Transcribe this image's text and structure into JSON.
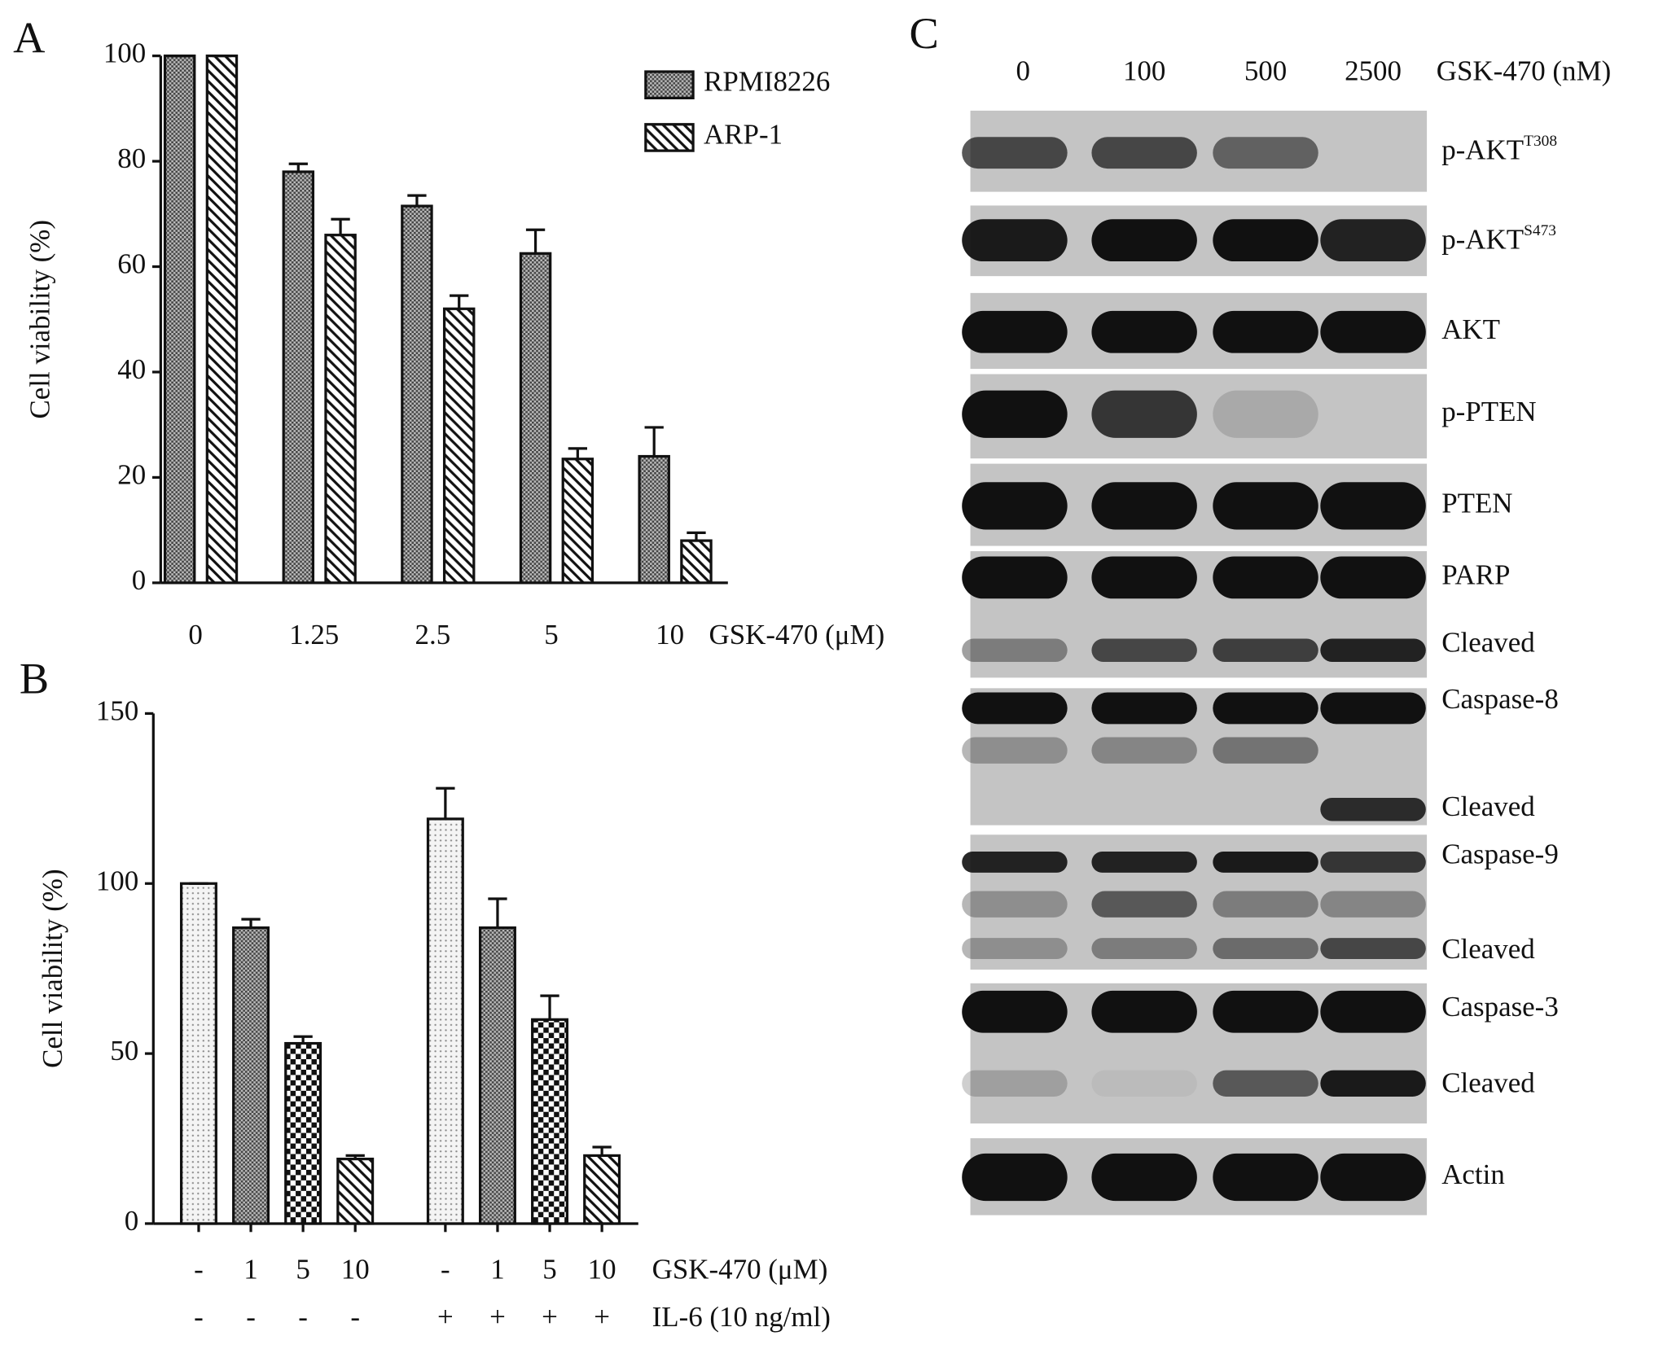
{
  "chart_data": [
    {
      "type": "bar",
      "panel_label": "A",
      "ylabel": "Cell viability (%)",
      "xlabel": "GSK-470 (μM)",
      "categories": [
        "0",
        "1.25",
        "2.5",
        "5",
        "10"
      ],
      "series": [
        {
          "name": "RPMI8226",
          "pattern": "crosshatch",
          "values": [
            100,
            78,
            71.5,
            62.5,
            24
          ],
          "errors": [
            0,
            1.5,
            2,
            4.5,
            5.5
          ]
        },
        {
          "name": "ARP-1",
          "pattern": "diagonal",
          "values": [
            100,
            66,
            52,
            23.5,
            8
          ],
          "errors": [
            0,
            3,
            2.5,
            2,
            1.5
          ]
        }
      ],
      "ylim": [
        0,
        100
      ],
      "yticks": [
        0,
        20,
        40,
        60,
        80,
        100
      ],
      "legend": "top-right"
    },
    {
      "type": "bar",
      "panel_label": "B",
      "ylabel": "Cell viability (%)",
      "x_label_rows": [
        {
          "label": "GSK-470 (μM)",
          "values": [
            "-",
            "1",
            "5",
            "10",
            "-",
            "1",
            "5",
            "10"
          ]
        },
        {
          "label": "IL-6 (10 ng/ml)",
          "values": [
            "-",
            "-",
            "-",
            "-",
            "+",
            "+",
            "+",
            "+"
          ]
        }
      ],
      "values": [
        100,
        87,
        53,
        19,
        119,
        87,
        60,
        20
      ],
      "errors": [
        0,
        2.5,
        2,
        1,
        9,
        8.5,
        7,
        2.5
      ],
      "patterns": [
        "dots",
        "crosshatch",
        "checker",
        "diagonal",
        "dots",
        "crosshatch",
        "checker",
        "diagonal"
      ],
      "ylim": [
        0,
        150
      ],
      "yticks": [
        0,
        50,
        100,
        150
      ]
    }
  ],
  "blot": {
    "panel_label": "C",
    "columns": [
      "0",
      "100",
      "500",
      "2500"
    ],
    "treatment": "GSK-470 (nM)",
    "labels": [
      {
        "text": "p-AKT",
        "sup": "T308"
      },
      {
        "text": "p-AKT",
        "sup": "S473"
      },
      {
        "text": "AKT"
      },
      {
        "text": "p-PTEN"
      },
      {
        "text": "PTEN"
      },
      {
        "text": "PARP"
      },
      {
        "text": "Cleaved"
      },
      {
        "text": "Caspase-8"
      },
      {
        "text": "Cleaved"
      },
      {
        "text": "Caspase-9"
      },
      {
        "text": "Cleaved"
      },
      {
        "text": "Caspase-3"
      },
      {
        "text": "Cleaved"
      },
      {
        "text": "Actin"
      }
    ]
  }
}
